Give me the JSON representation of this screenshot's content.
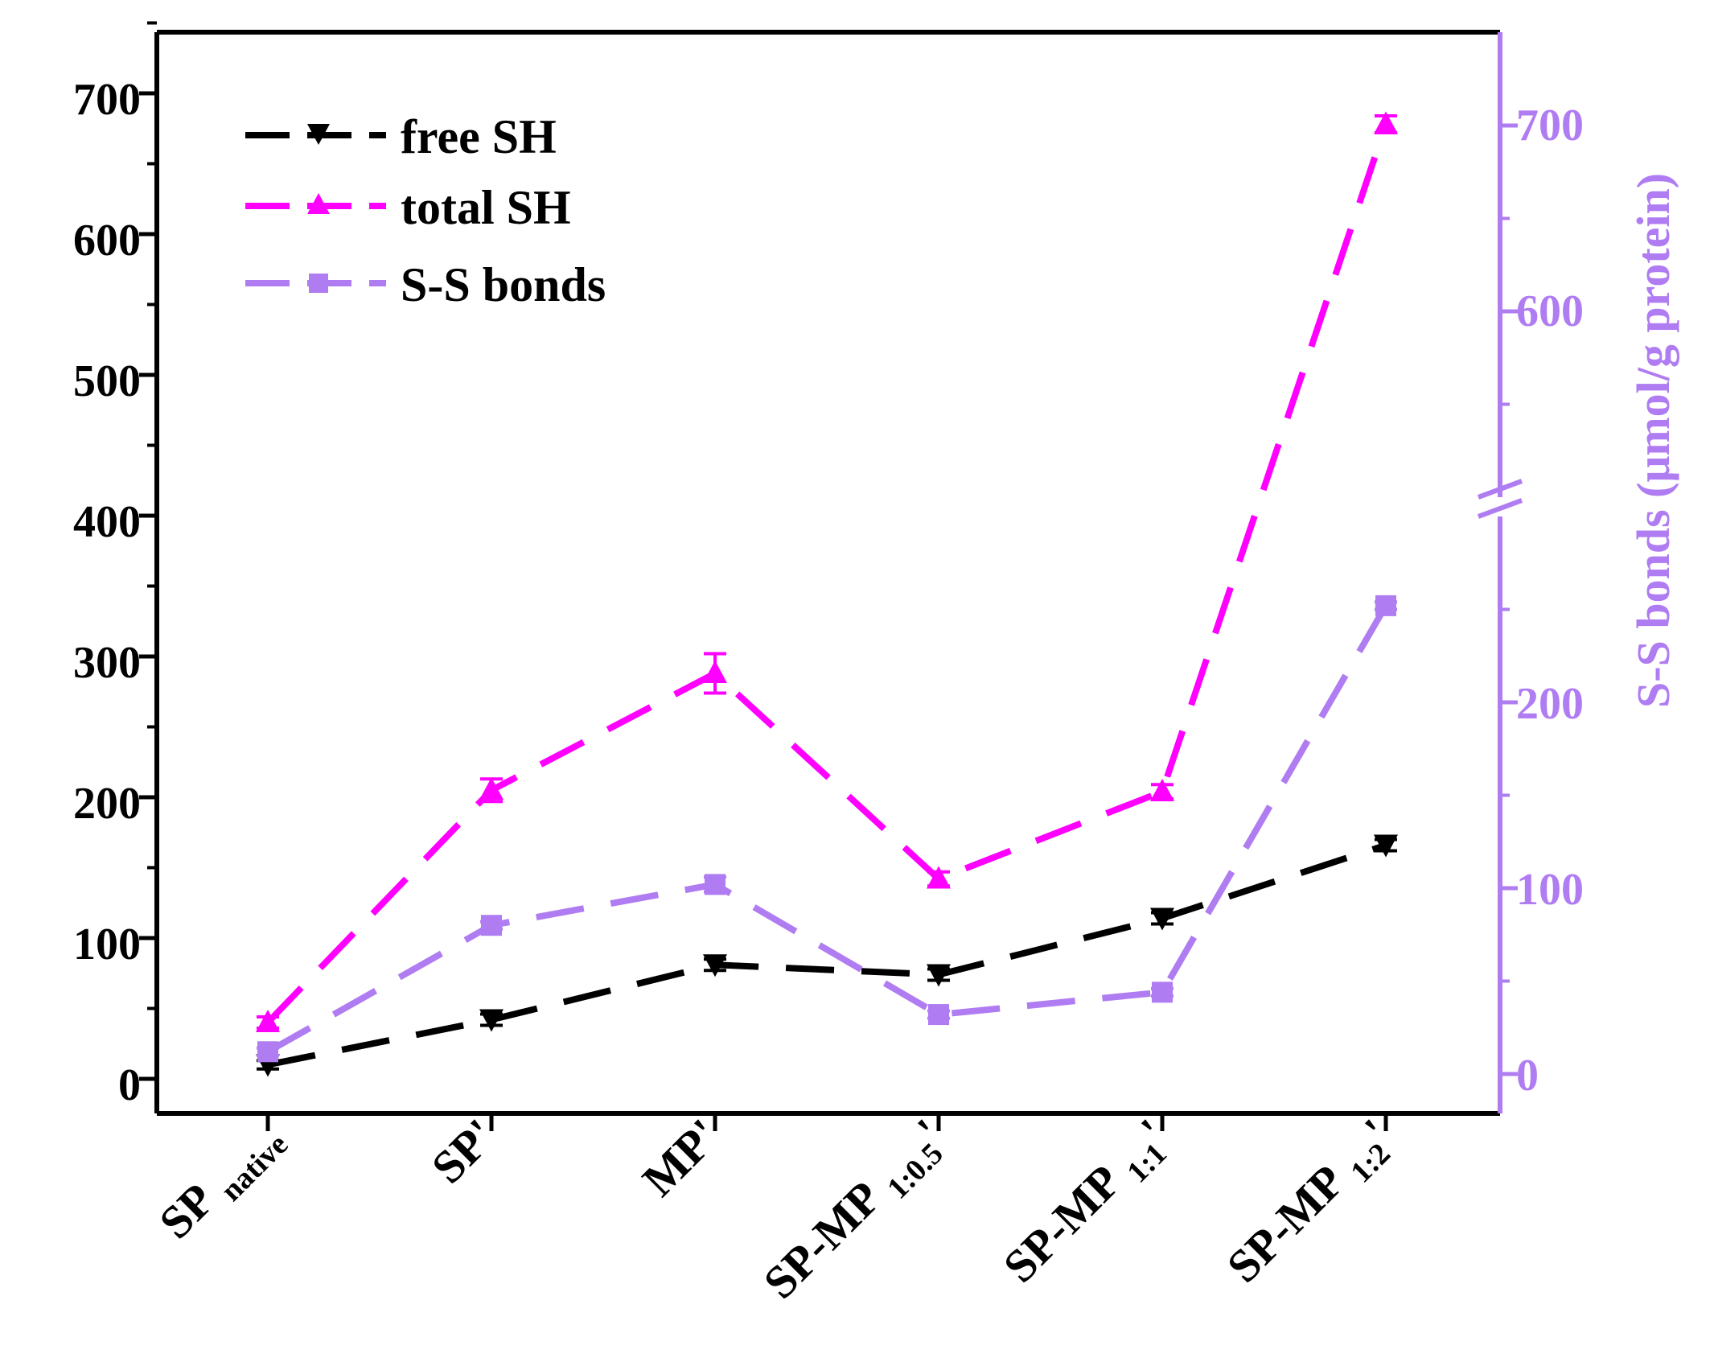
{
  "colors": {
    "free_sh": "#000000",
    "total_sh": "#ff00ff",
    "ss_bonds": "#b07cf2"
  },
  "chart_data": {
    "type": "line",
    "categories": [
      {
        "main": "SP",
        "sub": "native",
        "prime": ""
      },
      {
        "main": "SP",
        "sub": "",
        "prime": "'"
      },
      {
        "main": "MP",
        "sub": "",
        "prime": "'"
      },
      {
        "main": "SP-MP",
        "sub": "1:0.5",
        "prime": "'"
      },
      {
        "main": "SP-MP",
        "sub": "1:1",
        "prime": "'"
      },
      {
        "main": "SP-MP",
        "sub": "1:2",
        "prime": "'"
      }
    ],
    "left_axis": {
      "ylim": [
        -20,
        750
      ],
      "ticks": [
        "0",
        "100",
        "200",
        "300",
        "400",
        "500",
        "600",
        "700"
      ],
      "label": ""
    },
    "right_axis": {
      "label": "S-S bonds (μmol/g protein)",
      "lower_range": [
        -20,
        280
      ],
      "upper_range": [
        500,
        750
      ],
      "break_after": 280,
      "ticks": [
        "0",
        "100",
        "200",
        "600",
        "700"
      ]
    },
    "series": [
      {
        "name": "free SH",
        "axis": "left",
        "marker": "triangle-down",
        "values": [
          10,
          42,
          81,
          74,
          114,
          166
        ],
        "errors": [
          3,
          4,
          4,
          4,
          4,
          4
        ]
      },
      {
        "name": "total SH",
        "axis": "left",
        "marker": "triangle-up",
        "values": [
          40,
          205,
          288,
          142,
          204,
          678
        ],
        "errors": [
          4,
          8,
          14,
          5,
          5,
          6
        ]
      },
      {
        "name": "S-S bonds",
        "axis": "right",
        "marker": "square",
        "values": [
          12,
          80,
          102,
          32,
          44,
          252
        ],
        "errors": [
          2,
          2,
          4,
          2,
          2,
          2
        ]
      }
    ],
    "legend_position": "top-left"
  }
}
